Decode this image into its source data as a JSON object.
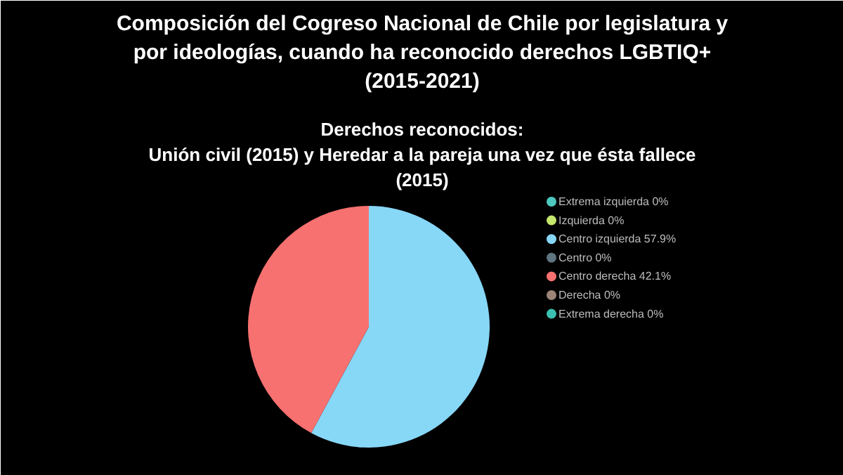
{
  "chart_data": {
    "type": "pie",
    "title": "Composición del Cogreso Nacional de Chile por legislatura y\npor ideologías, cuando ha reconocido derechos LGBTIQ+\n(2015-2021)",
    "subtitle": "Derechos reconocidos:\nUnión civil (2015) y Heredar a la pareja una vez que ésta fallece\n(2015)",
    "categories": [
      "Extrema izquierda 0%",
      "Izquierda 0%",
      "Centro izquierda 57.9%",
      "Centro 0%",
      "Centro derecha 42.1%",
      "Derecha 0%",
      "Extrema derecha 0%"
    ],
    "values": [
      0,
      0,
      57.9,
      0,
      42.1,
      0,
      0
    ],
    "colors": [
      "#4dc9c0",
      "#c5e86c",
      "#87d7f7",
      "#5f7580",
      "#f77170",
      "#9c8577",
      "#3cc0b0"
    ],
    "legend": "right"
  }
}
